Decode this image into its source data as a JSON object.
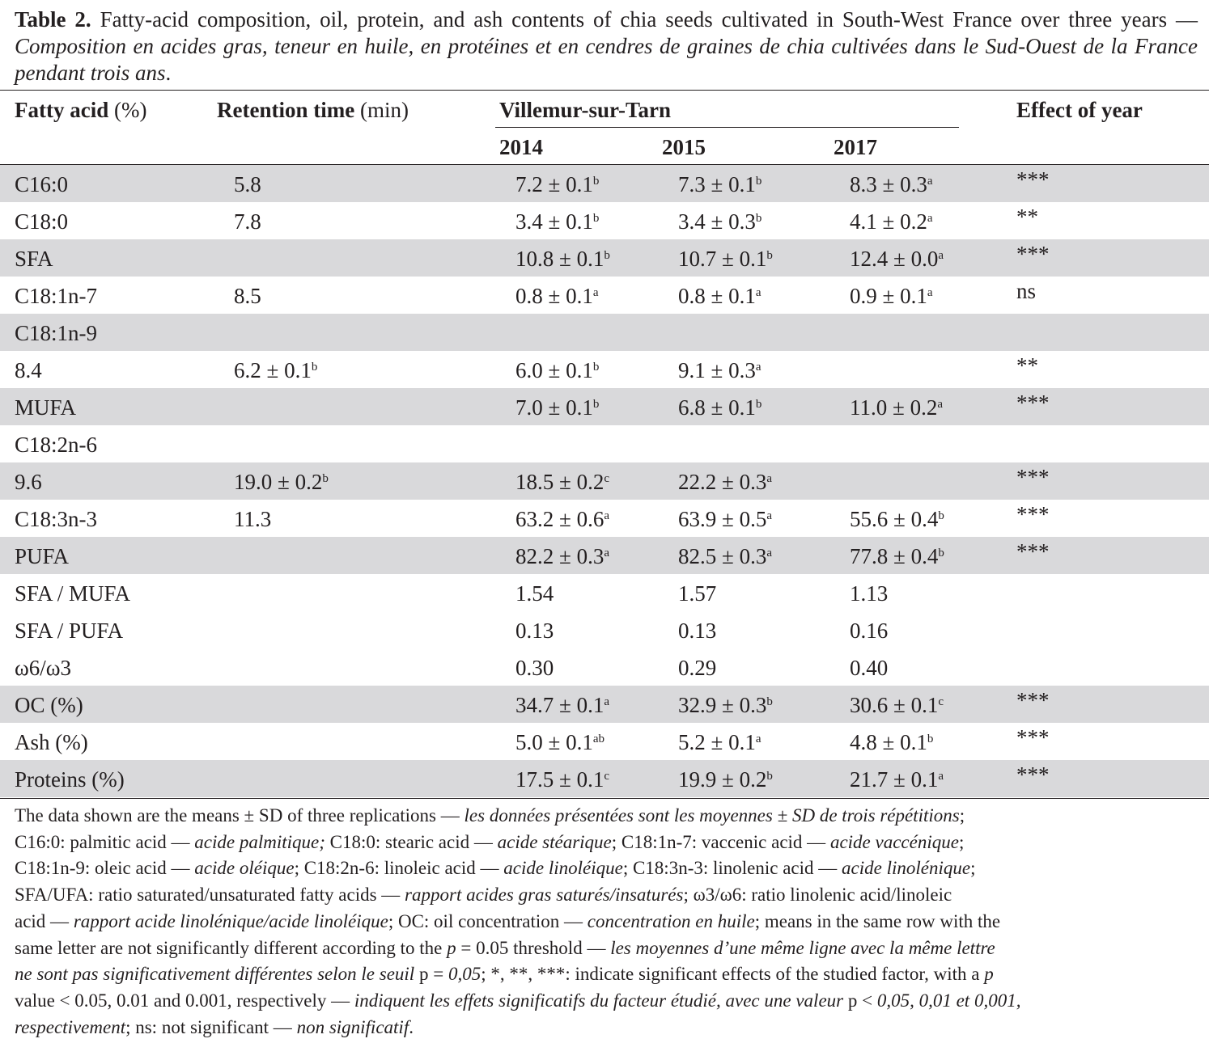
{
  "caption": {
    "label": "Table 2.",
    "english": "Fatty-acid composition, oil, protein, and ash contents of chia seeds cultivated in South-West France over three years — ",
    "french": "Composition en acides gras, teneur en huile, en protéines et en cendres de graines de chia cultivées dans le Sud-Ouest de la France pendant trois ans",
    "end": "."
  },
  "header": {
    "fatty_acid_bold": "Fatty acid",
    "fatty_acid_unit": " (%)",
    "retention_bold": "Retention time",
    "retention_unit": " (min)",
    "location": "Villemur-sur-Tarn",
    "effect": "Effect of year",
    "years": [
      "2014",
      "2015",
      "2017"
    ]
  },
  "rows": [
    {
      "fa": "C16:0",
      "rt": "5.8",
      "rt_sup": "",
      "y14": "7.2 ± 0.1",
      "y14_sup": "b",
      "y15": "7.3 ± 0.1",
      "y15_sup": "b",
      "y17": "8.3 ± 0.3",
      "y17_sup": "a",
      "eff": "***",
      "shaded": true
    },
    {
      "fa": "C18:0",
      "rt": "7.8",
      "rt_sup": "",
      "y14": "3.4 ± 0.1",
      "y14_sup": "b",
      "y15": "3.4 ± 0.3",
      "y15_sup": "b",
      "y17": "4.1 ± 0.2",
      "y17_sup": "a",
      "eff": "**",
      "shaded": false
    },
    {
      "fa": "SFA",
      "rt": "",
      "rt_sup": "",
      "y14": "10.8 ± 0.1",
      "y14_sup": "b",
      "y15": "10.7 ± 0.1",
      "y15_sup": "b",
      "y17": "12.4 ± 0.0",
      "y17_sup": "a",
      "eff": "***",
      "shaded": true
    },
    {
      "fa": "C18:1n-7",
      "rt": "8.5",
      "rt_sup": "",
      "y14": "0.8 ± 0.1",
      "y14_sup": "a",
      "y15": "0.8 ± 0.1",
      "y15_sup": "a",
      "y17": "0.9 ± 0.1",
      "y17_sup": "a",
      "eff": "ns",
      "shaded": false
    },
    {
      "fa": "C18:1n-9",
      "rt": "",
      "rt_sup": "",
      "y14": "",
      "y14_sup": "",
      "y15": "",
      "y15_sup": "",
      "y17": "",
      "y17_sup": "",
      "eff": "",
      "shaded": true
    },
    {
      "fa": "8.4",
      "rt": "6.2 ± 0.1",
      "rt_sup": "b",
      "y14": "6.0 ± 0.1",
      "y14_sup": "b",
      "y15": "9.1 ± 0.3",
      "y15_sup": "a",
      "y17": "",
      "y17_sup": "",
      "eff": "**",
      "shaded": false
    },
    {
      "fa": "MUFA",
      "rt": "",
      "rt_sup": "",
      "y14": "7.0 ± 0.1",
      "y14_sup": "b",
      "y15": "6.8 ± 0.1",
      "y15_sup": "b",
      "y17": "11.0 ± 0.2",
      "y17_sup": "a",
      "eff": "***",
      "shaded": true
    },
    {
      "fa": "C18:2n-6",
      "rt": "",
      "rt_sup": "",
      "y14": "",
      "y14_sup": "",
      "y15": "",
      "y15_sup": "",
      "y17": "",
      "y17_sup": "",
      "eff": "",
      "shaded": false
    },
    {
      "fa": "9.6",
      "rt": "19.0 ± 0.2",
      "rt_sup": "b",
      "y14": "18.5 ± 0.2",
      "y14_sup": "c",
      "y15": "22.2 ± 0.3",
      "y15_sup": "a",
      "y17": "",
      "y17_sup": "",
      "eff": "***",
      "shaded": true
    },
    {
      "fa": "C18:3n-3",
      "rt": "11.3",
      "rt_sup": "",
      "y14": "63.2 ± 0.6",
      "y14_sup": "a",
      "y15": "63.9 ± 0.5",
      "y15_sup": "a",
      "y17": "55.6 ± 0.4",
      "y17_sup": "b",
      "eff": "***",
      "shaded": false
    },
    {
      "fa": "PUFA",
      "rt": "",
      "rt_sup": "",
      "y14": "82.2 ± 0.3",
      "y14_sup": "a",
      "y15": "82.5 ± 0.3",
      "y15_sup": "a",
      "y17": "77.8 ± 0.4",
      "y17_sup": "b",
      "eff": "***",
      "shaded": true
    },
    {
      "fa": "SFA / MUFA",
      "rt": "",
      "rt_sup": "",
      "y14": "1.54",
      "y14_sup": "",
      "y15": "1.57",
      "y15_sup": "",
      "y17": "1.13",
      "y17_sup": "",
      "eff": "",
      "shaded": false
    },
    {
      "fa": "SFA / PUFA",
      "rt": "",
      "rt_sup": "",
      "y14": "0.13",
      "y14_sup": "",
      "y15": "0.13",
      "y15_sup": "",
      "y17": "0.16",
      "y17_sup": "",
      "eff": "",
      "shaded": false
    },
    {
      "fa": "ω6/ω3",
      "rt": "",
      "rt_sup": "",
      "y14": "0.30",
      "y14_sup": "",
      "y15": "0.29",
      "y15_sup": "",
      "y17": "0.40",
      "y17_sup": "",
      "eff": "",
      "shaded": false
    },
    {
      "fa": "OC (%)",
      "rt": "",
      "rt_sup": "",
      "y14": "34.7 ± 0.1",
      "y14_sup": "a",
      "y15": "32.9 ± 0.3",
      "y15_sup": "b",
      "y17": "30.6 ± 0.1",
      "y17_sup": "c",
      "eff": "***",
      "shaded": true
    },
    {
      "fa": "Ash (%)",
      "rt": "",
      "rt_sup": "",
      "y14": "5.0 ± 0.1",
      "y14_sup": "ab",
      "y15": "5.2 ± 0.1",
      "y15_sup": "a",
      "y17": "4.8 ± 0.1",
      "y17_sup": "b",
      "eff": "***",
      "shaded": false
    },
    {
      "fa": "Proteins (%)",
      "rt": "",
      "rt_sup": "",
      "y14": "17.5 ± 0.1",
      "y14_sup": "c",
      "y15": "19.9 ± 0.2",
      "y15_sup": "b",
      "y17": "21.7 ± 0.1",
      "y17_sup": "a",
      "eff": "***",
      "shaded": true
    }
  ],
  "footnote": [
    [
      {
        "t": "The data shown are the means ± SD of three replications — ",
        "i": false
      },
      {
        "t": "les données présentées sont les moyennes ± SD de trois répétitions",
        "i": true
      },
      {
        "t": ";",
        "i": false
      }
    ],
    [
      {
        "t": "C16:0: palmitic acid — ",
        "i": false
      },
      {
        "t": "acide palmitique;",
        "i": true
      },
      {
        "t": " C18:0: stearic acid — ",
        "i": false
      },
      {
        "t": "acide stéarique",
        "i": true
      },
      {
        "t": "; C18:1n-7: vaccenic acid — ",
        "i": false
      },
      {
        "t": "acide vaccénique",
        "i": true
      },
      {
        "t": ";",
        "i": false
      }
    ],
    [
      {
        "t": "C18:1n-9: oleic acid — ",
        "i": false
      },
      {
        "t": "acide oléique",
        "i": true
      },
      {
        "t": "; C18:2n-6: linoleic acid — ",
        "i": false
      },
      {
        "t": "acide linoléique",
        "i": true
      },
      {
        "t": "; C18:3n-3: linolenic acid — ",
        "i": false
      },
      {
        "t": "acide linolénique",
        "i": true
      },
      {
        "t": ";",
        "i": false
      }
    ],
    [
      {
        "t": "SFA/UFA: ratio saturated/unsaturated fatty acids — ",
        "i": false
      },
      {
        "t": "rapport acides gras saturés/insaturés",
        "i": true
      },
      {
        "t": "; ω3/ω6: ratio linolenic acid/linoleic",
        "i": false
      }
    ],
    [
      {
        "t": "acid — ",
        "i": false
      },
      {
        "t": "rapport acide linolénique/acide linoléique",
        "i": true
      },
      {
        "t": "; OC: oil concentration — ",
        "i": false
      },
      {
        "t": "concentration en huile",
        "i": true
      },
      {
        "t": "; means in the same row with the",
        "i": false
      }
    ],
    [
      {
        "t": "same letter are not significantly different according to the ",
        "i": false
      },
      {
        "t": "p",
        "i": true
      },
      {
        "t": " = 0.05 threshold — ",
        "i": false
      },
      {
        "t": "les moyennes d’une même ligne avec la même lettre",
        "i": true
      }
    ],
    [
      {
        "t": "ne sont pas significativement différentes selon le seuil",
        "i": true
      },
      {
        "t": " p = ",
        "i": false
      },
      {
        "t": "0,05",
        "i": true
      },
      {
        "t": "; *, **, ***: indicate significant effects of the studied factor, with a ",
        "i": false
      },
      {
        "t": "p",
        "i": true
      }
    ],
    [
      {
        "t": "value < 0.05, 0.01 and 0.001, respectively — ",
        "i": false
      },
      {
        "t": "indiquent les effets significatifs du facteur étudié, avec une valeur",
        "i": true
      },
      {
        "t": " p < ",
        "i": false
      },
      {
        "t": "0,05, 0,01 et 0,001,",
        "i": true
      }
    ],
    [
      {
        "t": "respectivement",
        "i": true
      },
      {
        "t": "; ns: not significant — ",
        "i": false
      },
      {
        "t": "non significatif",
        "i": true
      },
      {
        "t": ".",
        "i": false
      }
    ]
  ]
}
